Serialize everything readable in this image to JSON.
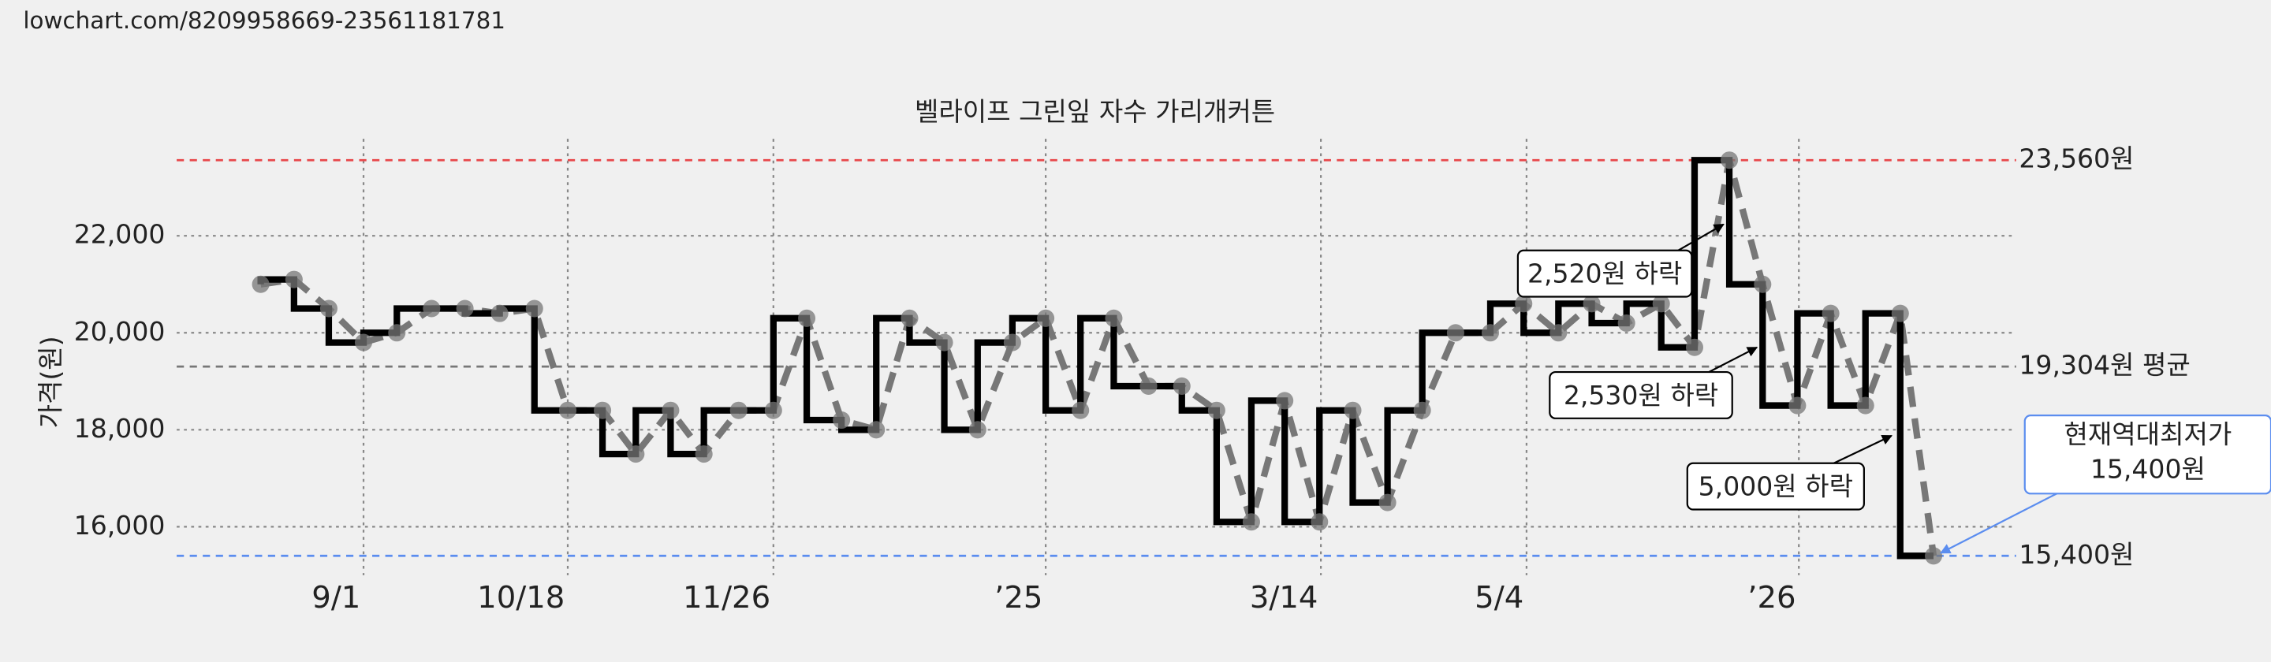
{
  "header": {
    "url": "lowchart.com/8209958669-23561181781"
  },
  "chart_data": {
    "type": "line",
    "step": true,
    "title": "벨라이프 그린잎 자수 가리개커튼",
    "y_label": "가격(원)",
    "xlim": [
      0,
      1270
    ],
    "xticks": [
      {
        "value": 129,
        "label": "9/1"
      },
      {
        "value": 270,
        "label": "10/18"
      },
      {
        "value": 412,
        "label": "11/26"
      },
      {
        "value": 600,
        "label": "’25"
      },
      {
        "value": 790,
        "label": "3/14"
      },
      {
        "value": 932,
        "label": "5/4"
      },
      {
        "value": 1120,
        "label": "’26"
      }
    ],
    "ylim": [
      15000,
      24000
    ],
    "yticks": [
      {
        "value": 16000,
        "label": "16,000"
      },
      {
        "value": 18000,
        "label": "18,000"
      },
      {
        "value": 20000,
        "label": "20,000"
      },
      {
        "value": 22000,
        "label": "22,000"
      }
    ],
    "grid": true,
    "color": "#000000",
    "dash_color": "#777777",
    "x": [
      58,
      81,
      105,
      129,
      152,
      176,
      199,
      223,
      247,
      270,
      294,
      317,
      341,
      364,
      388,
      412,
      435,
      459,
      483,
      506,
      530,
      553,
      577,
      600,
      624,
      647,
      671,
      694,
      718,
      742,
      765,
      789,
      812,
      836,
      860,
      883,
      907,
      930,
      954,
      977,
      1001,
      1025,
      1048,
      1072,
      1095,
      1119,
      1142,
      1166,
      1190,
      1213
    ],
    "values": [
      21000,
      21100,
      20500,
      19800,
      20000,
      20500,
      20500,
      20400,
      20500,
      18400,
      18400,
      17500,
      18400,
      17500,
      18400,
      18400,
      20300,
      18200,
      18000,
      20300,
      19800,
      18000,
      19800,
      20300,
      18400,
      20300,
      18900,
      18900,
      18400,
      16100,
      18600,
      16100,
      18400,
      16500,
      18400,
      20000,
      20000,
      20600,
      20000,
      20600,
      20200,
      20600,
      19700,
      23560,
      21000,
      18500,
      20400,
      18500,
      20400,
      15400
    ],
    "reference_lines": [
      {
        "value": 23560,
        "label": "23,560원",
        "color": "#e8474a"
      },
      {
        "value": 19304,
        "label": "19,304원 평균",
        "color": "#777777"
      },
      {
        "value": 15400,
        "label": "15,400원",
        "color": "#5b8def"
      }
    ],
    "annotations": [
      {
        "text": "2,520원 하락"
      },
      {
        "text": "2,530원 하락"
      },
      {
        "text": "5,000원 하락"
      },
      {
        "text": [
          "현재역대최저가",
          "15,400원"
        ],
        "color": "#5b8def"
      }
    ]
  }
}
